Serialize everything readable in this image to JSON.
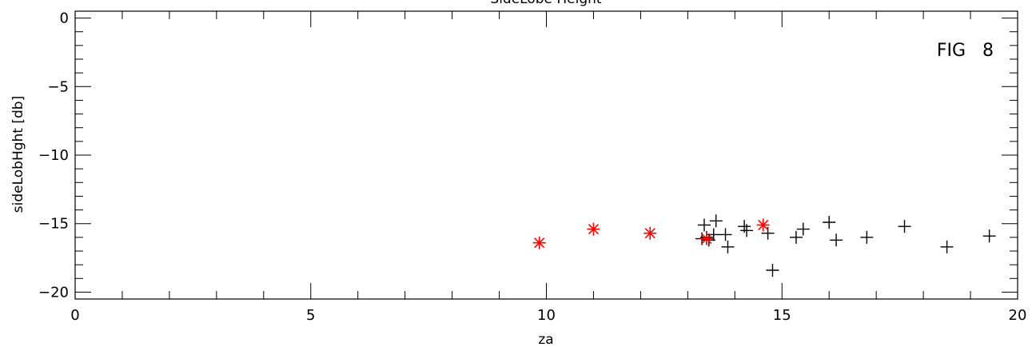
{
  "chart_data": {
    "type": "scatter",
    "title": "SideLobe Height",
    "xlabel": "za",
    "ylabel": "sideLobHght [db]",
    "xlim": [
      0,
      20
    ],
    "ylim": [
      -20.5,
      0.5
    ],
    "x_ticks": [
      0,
      5,
      10,
      15,
      20
    ],
    "x_tick_labels": [
      "0",
      "5",
      "10",
      "15",
      "20"
    ],
    "y_ticks": [
      0,
      -5,
      -10,
      -15,
      -20
    ],
    "y_tick_labels": [
      "0",
      "−5",
      "−10",
      "−15",
      "−20"
    ],
    "x_minor_step": 1,
    "y_minor_step": 1,
    "grid": false,
    "annotation": "FIG   8",
    "series": [
      {
        "marker": "plus",
        "color": "#000000",
        "points": [
          [
            13.3,
            -16.1
          ],
          [
            13.35,
            -15.1
          ],
          [
            13.4,
            -16.0
          ],
          [
            13.45,
            -16.2
          ],
          [
            13.55,
            -15.8
          ],
          [
            13.6,
            -14.8
          ],
          [
            13.8,
            -15.8
          ],
          [
            13.85,
            -16.7
          ],
          [
            14.2,
            -15.2
          ],
          [
            14.25,
            -15.5
          ],
          [
            14.7,
            -15.7
          ],
          [
            14.8,
            -18.4
          ],
          [
            15.3,
            -16.0
          ],
          [
            15.45,
            -15.4
          ],
          [
            16.0,
            -14.9
          ],
          [
            16.15,
            -16.2
          ],
          [
            16.8,
            -16.0
          ],
          [
            17.6,
            -15.2
          ],
          [
            18.5,
            -16.7
          ],
          [
            19.4,
            -15.9
          ]
        ]
      },
      {
        "marker": "asterisk",
        "color": "#ff0000",
        "points": [
          [
            9.85,
            -16.4
          ],
          [
            11.0,
            -15.4
          ],
          [
            12.2,
            -15.7
          ],
          [
            13.4,
            -16.1
          ],
          [
            14.6,
            -15.1
          ]
        ]
      }
    ]
  }
}
